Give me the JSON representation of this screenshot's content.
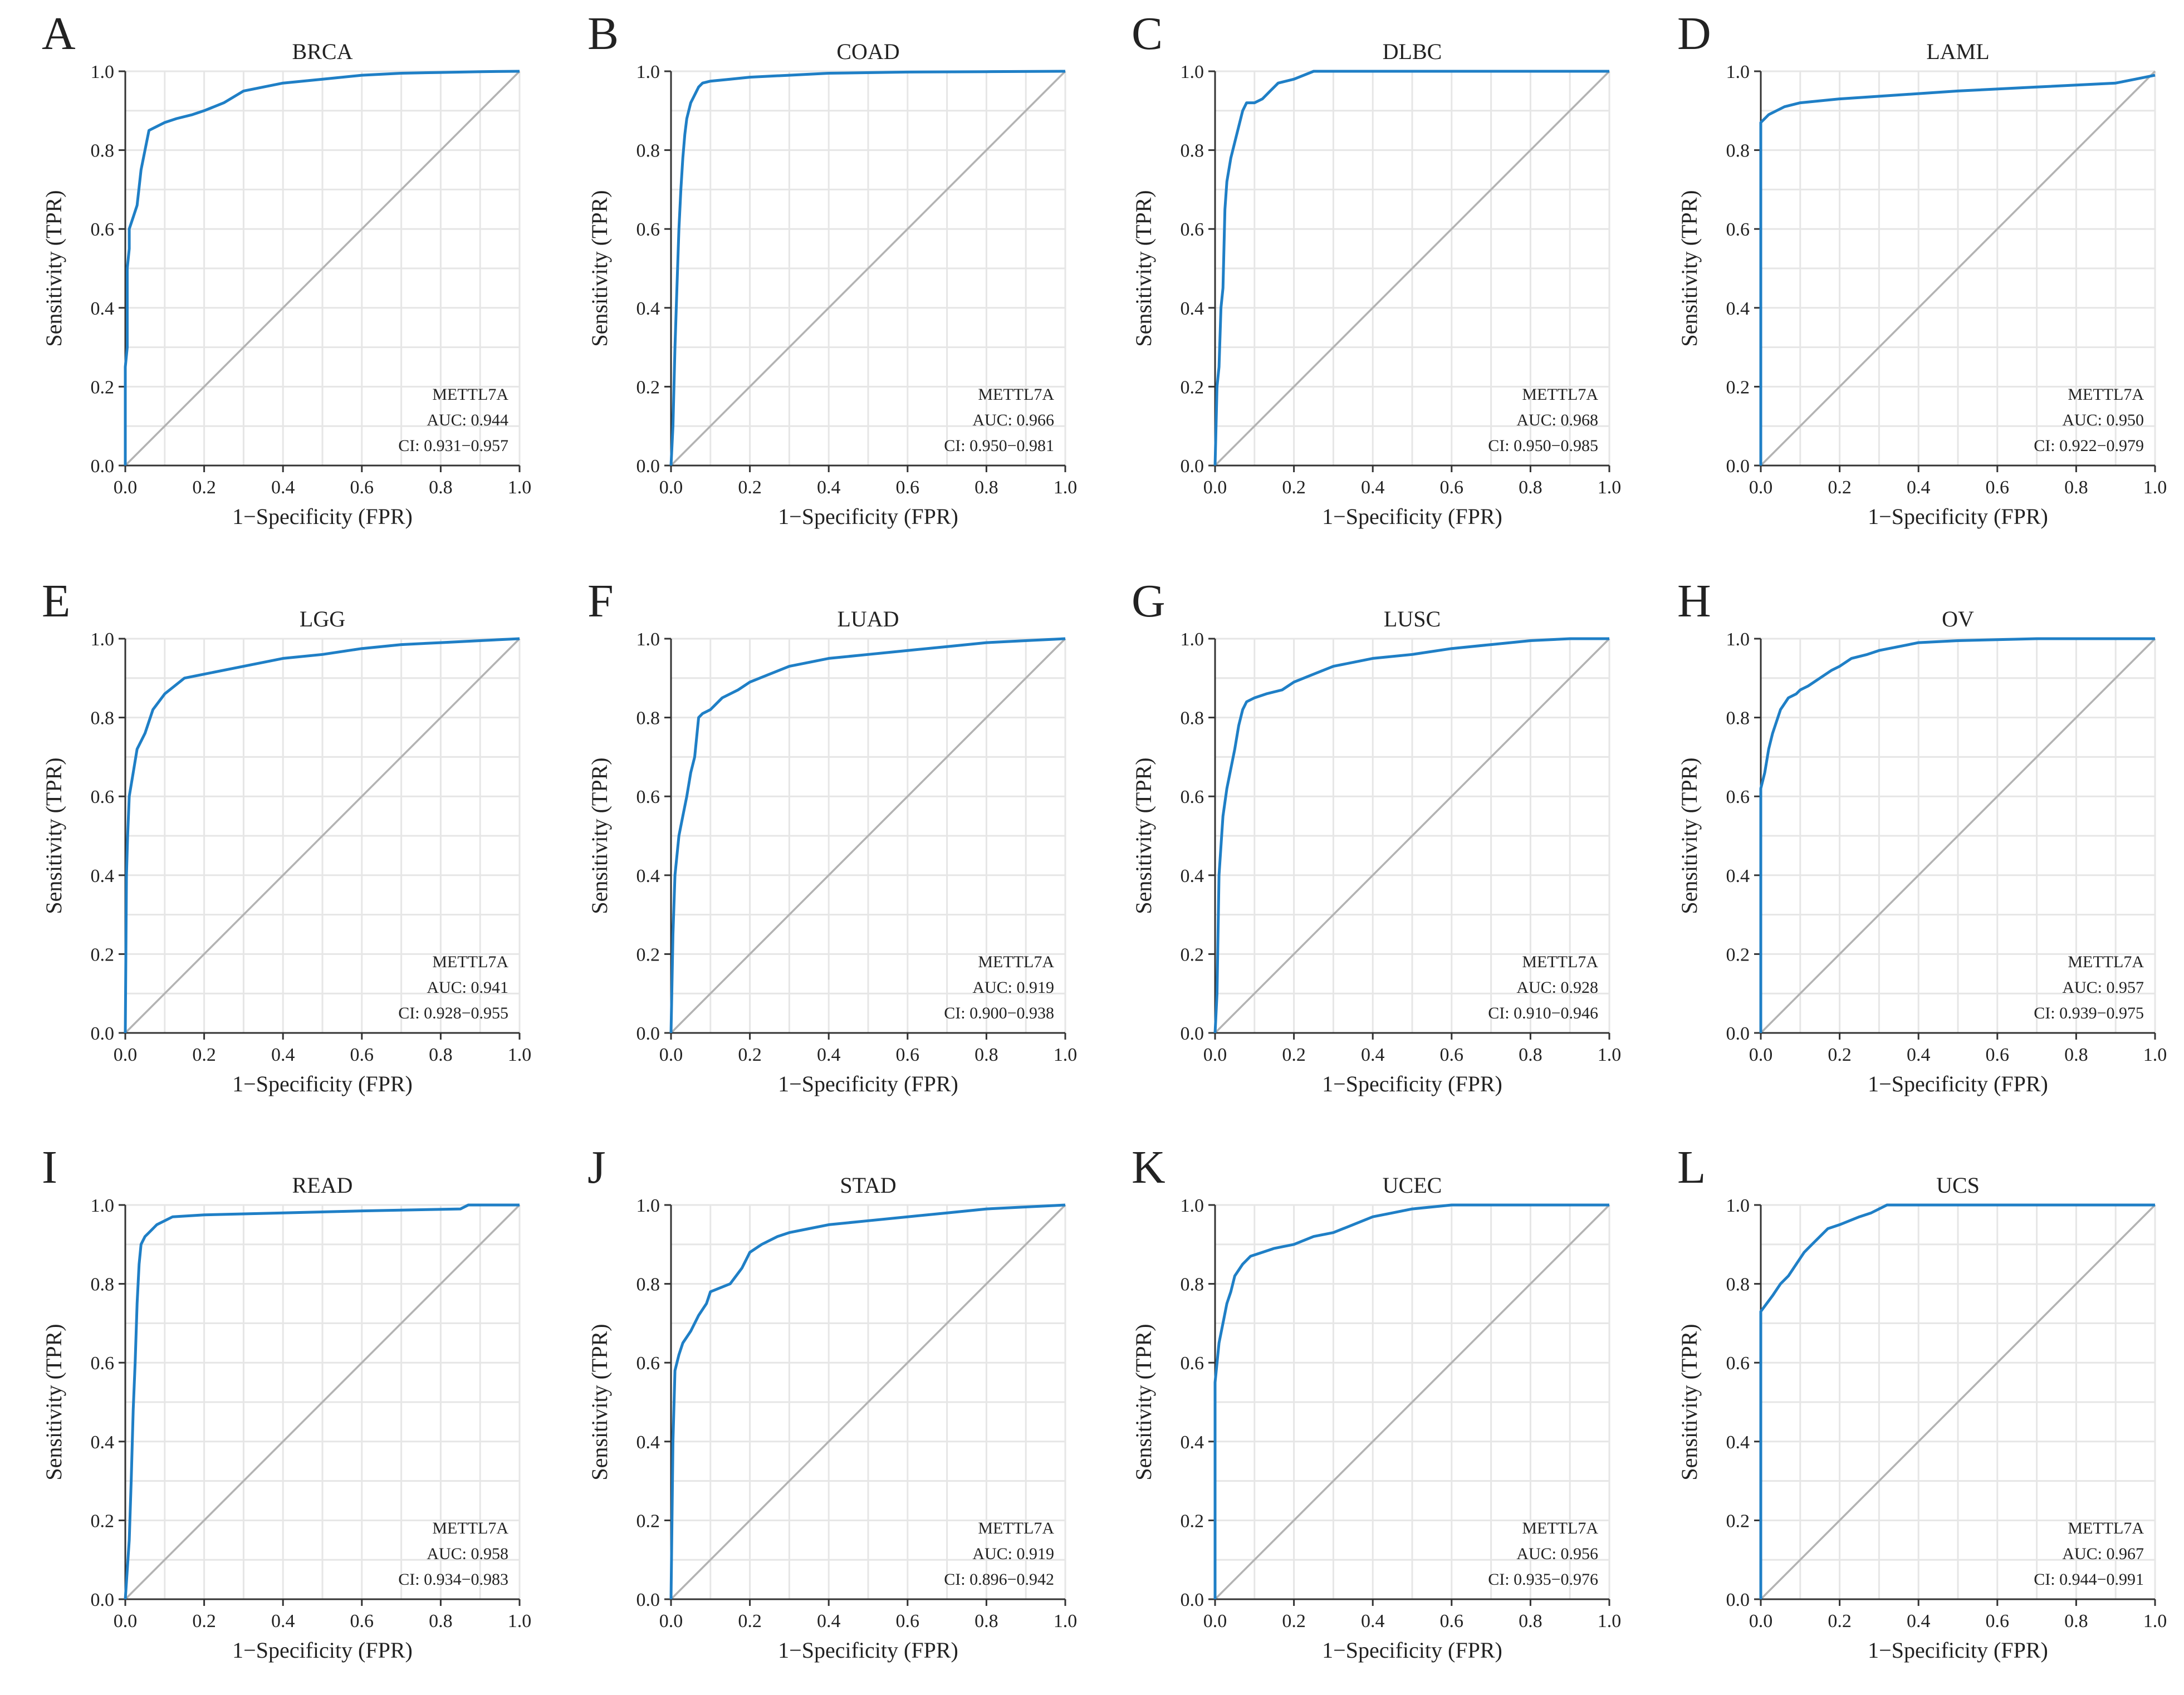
{
  "style": {
    "roc_color": "#1f7fc6",
    "diagonal_color": "#b3b3b3",
    "grid_color": "#e6e6e6",
    "axis_color": "#333333"
  },
  "chart_data": [
    {
      "panel": "A",
      "type": "line",
      "title": "BRCA",
      "xlabel": "1−Specificity (FPR)",
      "ylabel": "Sensitivity (TPR)",
      "xlim": [
        0,
        1
      ],
      "ylim": [
        0,
        1
      ],
      "ticks": [
        "0.0",
        "0.2",
        "0.4",
        "0.6",
        "0.8",
        "1.0"
      ],
      "grid": true,
      "annotation": {
        "gene": "METTL7A",
        "auc": "AUC: 0.944",
        "ci": "CI: 0.931−0.957"
      },
      "series": [
        {
          "x": [
            0,
            0,
            0.005,
            0.005,
            0.01,
            0.01,
            0.02,
            0.03,
            0.04,
            0.05,
            0.06,
            0.08,
            0.1,
            0.13,
            0.17,
            0.2,
            0.25,
            0.3,
            0.35,
            0.4,
            0.5,
            0.6,
            0.7,
            0.8,
            0.9,
            1
          ],
          "y": [
            0,
            0.25,
            0.3,
            0.5,
            0.55,
            0.6,
            0.63,
            0.66,
            0.75,
            0.8,
            0.85,
            0.86,
            0.87,
            0.88,
            0.89,
            0.9,
            0.92,
            0.95,
            0.96,
            0.97,
            0.98,
            0.99,
            0.995,
            0.997,
            0.999,
            1
          ]
        }
      ]
    },
    {
      "panel": "B",
      "type": "line",
      "title": "COAD",
      "xlabel": "1−Specificity (FPR)",
      "ylabel": "Sensitivity (TPR)",
      "xlim": [
        0,
        1
      ],
      "ylim": [
        0,
        1
      ],
      "ticks": [
        "0.0",
        "0.2",
        "0.4",
        "0.6",
        "0.8",
        "1.0"
      ],
      "grid": true,
      "annotation": {
        "gene": "METTL7A",
        "auc": "AUC: 0.966",
        "ci": "CI: 0.950−0.981"
      },
      "series": [
        {
          "x": [
            0,
            0.005,
            0.01,
            0.015,
            0.02,
            0.025,
            0.03,
            0.035,
            0.04,
            0.05,
            0.06,
            0.07,
            0.08,
            0.1,
            0.15,
            0.2,
            0.3,
            0.4,
            0.6,
            0.8,
            1
          ],
          "y": [
            0,
            0.1,
            0.3,
            0.45,
            0.6,
            0.7,
            0.78,
            0.84,
            0.88,
            0.92,
            0.94,
            0.96,
            0.97,
            0.975,
            0.98,
            0.985,
            0.99,
            0.995,
            0.998,
            0.999,
            1
          ]
        }
      ]
    },
    {
      "panel": "C",
      "type": "line",
      "title": "DLBC",
      "xlabel": "1−Specificity (FPR)",
      "ylabel": "Sensitivity (TPR)",
      "xlim": [
        0,
        1
      ],
      "ylim": [
        0,
        1
      ],
      "ticks": [
        "0.0",
        "0.2",
        "0.4",
        "0.6",
        "0.8",
        "1.0"
      ],
      "grid": true,
      "annotation": {
        "gene": "METTL7A",
        "auc": "AUC: 0.968",
        "ci": "CI: 0.950−0.985"
      },
      "series": [
        {
          "x": [
            0,
            0.005,
            0.01,
            0.015,
            0.02,
            0.025,
            0.03,
            0.04,
            0.05,
            0.06,
            0.07,
            0.08,
            0.1,
            0.12,
            0.14,
            0.16,
            0.2,
            0.25,
            1
          ],
          "y": [
            0,
            0.2,
            0.25,
            0.4,
            0.45,
            0.65,
            0.72,
            0.78,
            0.82,
            0.86,
            0.9,
            0.92,
            0.92,
            0.93,
            0.95,
            0.97,
            0.98,
            1,
            1
          ]
        }
      ]
    },
    {
      "panel": "D",
      "type": "line",
      "title": "LAML",
      "xlabel": "1−Specificity (FPR)",
      "ylabel": "Sensitivity (TPR)",
      "xlim": [
        0,
        1
      ],
      "ylim": [
        0,
        1
      ],
      "ticks": [
        "0.0",
        "0.2",
        "0.4",
        "0.6",
        "0.8",
        "1.0"
      ],
      "grid": true,
      "annotation": {
        "gene": "METTL7A",
        "auc": "AUC: 0.950",
        "ci": "CI: 0.922−0.979"
      },
      "series": [
        {
          "x": [
            0,
            0,
            0.01,
            0.02,
            0.04,
            0.06,
            0.1,
            0.2,
            0.35,
            0.5,
            0.7,
            0.9,
            0.95,
            1
          ],
          "y": [
            0,
            0.87,
            0.88,
            0.89,
            0.9,
            0.91,
            0.92,
            0.93,
            0.94,
            0.95,
            0.96,
            0.97,
            0.98,
            0.99
          ]
        }
      ]
    },
    {
      "panel": "E",
      "type": "line",
      "title": "LGG",
      "xlabel": "1−Specificity (FPR)",
      "ylabel": "Sensitivity (TPR)",
      "xlim": [
        0,
        1
      ],
      "ylim": [
        0,
        1
      ],
      "ticks": [
        "0.0",
        "0.2",
        "0.4",
        "0.6",
        "0.8",
        "1.0"
      ],
      "grid": true,
      "annotation": {
        "gene": "METTL7A",
        "auc": "AUC: 0.941",
        "ci": "CI: 0.928−0.955"
      },
      "series": [
        {
          "x": [
            0,
            0.003,
            0.006,
            0.01,
            0.02,
            0.03,
            0.05,
            0.07,
            0.1,
            0.15,
            0.2,
            0.3,
            0.4,
            0.5,
            0.6,
            0.7,
            0.8,
            0.9,
            1
          ],
          "y": [
            0,
            0.4,
            0.5,
            0.6,
            0.66,
            0.72,
            0.76,
            0.82,
            0.86,
            0.9,
            0.91,
            0.93,
            0.95,
            0.96,
            0.975,
            0.985,
            0.99,
            0.995,
            1
          ]
        }
      ]
    },
    {
      "panel": "F",
      "type": "line",
      "title": "LUAD",
      "xlabel": "1−Specificity (FPR)",
      "ylabel": "Sensitivity (TPR)",
      "xlim": [
        0,
        1
      ],
      "ylim": [
        0,
        1
      ],
      "ticks": [
        "0.0",
        "0.2",
        "0.4",
        "0.6",
        "0.8",
        "1.0"
      ],
      "grid": true,
      "annotation": {
        "gene": "METTL7A",
        "auc": "AUC: 0.919",
        "ci": "CI: 0.900−0.938"
      },
      "series": [
        {
          "x": [
            0,
            0.005,
            0.01,
            0.02,
            0.03,
            0.04,
            0.05,
            0.06,
            0.07,
            0.08,
            0.1,
            0.13,
            0.17,
            0.2,
            0.25,
            0.3,
            0.4,
            0.5,
            0.6,
            0.7,
            0.8,
            0.9,
            1
          ],
          "y": [
            0,
            0.25,
            0.4,
            0.5,
            0.55,
            0.6,
            0.66,
            0.7,
            0.8,
            0.81,
            0.82,
            0.85,
            0.87,
            0.89,
            0.91,
            0.93,
            0.95,
            0.96,
            0.97,
            0.98,
            0.99,
            0.995,
            1
          ]
        }
      ]
    },
    {
      "panel": "G",
      "type": "line",
      "title": "LUSC",
      "xlabel": "1−Specificity (FPR)",
      "ylabel": "Sensitivity (TPR)",
      "xlim": [
        0,
        1
      ],
      "ylim": [
        0,
        1
      ],
      "ticks": [
        "0.0",
        "0.2",
        "0.4",
        "0.6",
        "0.8",
        "1.0"
      ],
      "grid": true,
      "annotation": {
        "gene": "METTL7A",
        "auc": "AUC: 0.928",
        "ci": "CI: 0.910−0.946"
      },
      "series": [
        {
          "x": [
            0,
            0.005,
            0.01,
            0.02,
            0.03,
            0.04,
            0.05,
            0.06,
            0.07,
            0.08,
            0.1,
            0.13,
            0.17,
            0.2,
            0.25,
            0.3,
            0.4,
            0.5,
            0.6,
            0.7,
            0.8,
            0.9,
            1
          ],
          "y": [
            0,
            0.1,
            0.4,
            0.55,
            0.62,
            0.67,
            0.72,
            0.78,
            0.82,
            0.84,
            0.85,
            0.86,
            0.87,
            0.89,
            0.91,
            0.93,
            0.95,
            0.96,
            0.975,
            0.985,
            0.995,
            1,
            1
          ]
        }
      ]
    },
    {
      "panel": "H",
      "type": "line",
      "title": "OV",
      "xlabel": "1−Specificity (FPR)",
      "ylabel": "Sensitivity (TPR)",
      "xlim": [
        0,
        1
      ],
      "ylim": [
        0,
        1
      ],
      "ticks": [
        "0.0",
        "0.2",
        "0.4",
        "0.6",
        "0.8",
        "1.0"
      ],
      "grid": true,
      "annotation": {
        "gene": "METTL7A",
        "auc": "AUC: 0.957",
        "ci": "CI: 0.939−0.975"
      },
      "series": [
        {
          "x": [
            0,
            0,
            0.01,
            0.02,
            0.03,
            0.04,
            0.05,
            0.07,
            0.09,
            0.1,
            0.12,
            0.15,
            0.18,
            0.2,
            0.23,
            0.27,
            0.3,
            0.35,
            0.4,
            0.5,
            0.7,
            1
          ],
          "y": [
            0,
            0.62,
            0.66,
            0.72,
            0.76,
            0.79,
            0.82,
            0.85,
            0.86,
            0.87,
            0.88,
            0.9,
            0.92,
            0.93,
            0.95,
            0.96,
            0.97,
            0.98,
            0.99,
            0.995,
            1,
            1
          ]
        }
      ]
    },
    {
      "panel": "I",
      "type": "line",
      "title": "READ",
      "xlabel": "1−Specificity (FPR)",
      "ylabel": "Sensitivity (TPR)",
      "xlim": [
        0,
        1
      ],
      "ylim": [
        0,
        1
      ],
      "ticks": [
        "0.0",
        "0.2",
        "0.4",
        "0.6",
        "0.8",
        "1.0"
      ],
      "grid": true,
      "annotation": {
        "gene": "METTL7A",
        "auc": "AUC: 0.958",
        "ci": "CI: 0.934−0.983"
      },
      "series": [
        {
          "x": [
            0,
            0.01,
            0.015,
            0.02,
            0.025,
            0.03,
            0.035,
            0.04,
            0.05,
            0.06,
            0.08,
            0.12,
            0.2,
            0.4,
            0.6,
            0.85,
            0.87,
            1
          ],
          "y": [
            0,
            0.15,
            0.3,
            0.48,
            0.6,
            0.75,
            0.85,
            0.9,
            0.92,
            0.93,
            0.95,
            0.97,
            0.975,
            0.98,
            0.985,
            0.99,
            1,
            1
          ]
        }
      ]
    },
    {
      "panel": "J",
      "type": "line",
      "title": "STAD",
      "xlabel": "1−Specificity (FPR)",
      "ylabel": "Sensitivity (TPR)",
      "xlim": [
        0,
        1
      ],
      "ylim": [
        0,
        1
      ],
      "ticks": [
        "0.0",
        "0.2",
        "0.4",
        "0.6",
        "0.8",
        "1.0"
      ],
      "grid": true,
      "annotation": {
        "gene": "METTL7A",
        "auc": "AUC: 0.919",
        "ci": "CI: 0.896−0.942"
      },
      "series": [
        {
          "x": [
            0,
            0.005,
            0.01,
            0.02,
            0.03,
            0.05,
            0.07,
            0.09,
            0.1,
            0.15,
            0.18,
            0.2,
            0.23,
            0.27,
            0.3,
            0.35,
            0.4,
            0.5,
            0.6,
            0.7,
            0.8,
            0.9,
            1
          ],
          "y": [
            0,
            0.4,
            0.58,
            0.62,
            0.65,
            0.68,
            0.72,
            0.75,
            0.78,
            0.8,
            0.84,
            0.88,
            0.9,
            0.92,
            0.93,
            0.94,
            0.95,
            0.96,
            0.97,
            0.98,
            0.99,
            0.995,
            1
          ]
        }
      ]
    },
    {
      "panel": "K",
      "type": "line",
      "title": "UCEC",
      "xlabel": "1−Specificity (FPR)",
      "ylabel": "Sensitivity (TPR)",
      "xlim": [
        0,
        1
      ],
      "ylim": [
        0,
        1
      ],
      "ticks": [
        "0.0",
        "0.2",
        "0.4",
        "0.6",
        "0.8",
        "1.0"
      ],
      "grid": true,
      "annotation": {
        "gene": "METTL7A",
        "auc": "AUC: 0.956",
        "ci": "CI: 0.935−0.976"
      },
      "series": [
        {
          "x": [
            0,
            0,
            0.01,
            0.02,
            0.03,
            0.04,
            0.05,
            0.07,
            0.09,
            0.12,
            0.15,
            0.2,
            0.25,
            0.3,
            0.35,
            0.4,
            0.45,
            0.5,
            0.6,
            0.8,
            1
          ],
          "y": [
            0,
            0.55,
            0.65,
            0.7,
            0.75,
            0.78,
            0.82,
            0.85,
            0.87,
            0.88,
            0.89,
            0.9,
            0.92,
            0.93,
            0.95,
            0.97,
            0.98,
            0.99,
            1,
            1,
            1
          ]
        }
      ]
    },
    {
      "panel": "L",
      "type": "line",
      "title": "UCS",
      "xlabel": "1−Specificity (FPR)",
      "ylabel": "Sensitivity (TPR)",
      "xlim": [
        0,
        1
      ],
      "ylim": [
        0,
        1
      ],
      "ticks": [
        "0.0",
        "0.2",
        "0.4",
        "0.6",
        "0.8",
        "1.0"
      ],
      "grid": true,
      "annotation": {
        "gene": "METTL7A",
        "auc": "AUC: 0.967",
        "ci": "CI: 0.944−0.991"
      },
      "series": [
        {
          "x": [
            0,
            0,
            0.03,
            0.05,
            0.07,
            0.09,
            0.11,
            0.13,
            0.15,
            0.17,
            0.2,
            0.25,
            0.28,
            0.32,
            1
          ],
          "y": [
            0,
            0.73,
            0.77,
            0.8,
            0.82,
            0.85,
            0.88,
            0.9,
            0.92,
            0.94,
            0.95,
            0.97,
            0.98,
            1,
            1
          ]
        }
      ]
    }
  ]
}
